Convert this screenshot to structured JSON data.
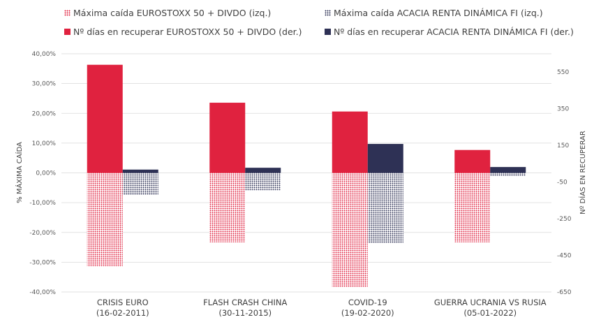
{
  "chart_data": {
    "type": "bar",
    "categories": [
      [
        "CRISIS EURO",
        "(16-02-2011)"
      ],
      [
        "FLASH CRASH CHINA",
        "(30-11-2015)"
      ],
      [
        "COVID-19",
        "(19-02-2020)"
      ],
      [
        "GUERRA UCRANIA VS RUSIA",
        "(05-01-2022)"
      ]
    ],
    "ylabel_left": "% MÁXIMA CAÍDA",
    "ylabel_right": "Nº DÍAS EN RECUPERAR",
    "ylim_left": [
      -40,
      40
    ],
    "ylim_right": [
      -650,
      650
    ],
    "yticks_left": [
      "40,00%",
      "30,00%",
      "20,00%",
      "10,00%",
      "0,00%",
      "-10,00%",
      "-20,00%",
      "-30,00%",
      "-40,00%"
    ],
    "yticks_left_values": [
      40,
      30,
      20,
      10,
      0,
      -10,
      -20,
      -30,
      -40
    ],
    "yticks_right": [
      "550",
      "350",
      "150",
      "-50",
      "-250",
      "-450",
      "-650"
    ],
    "yticks_right_values": [
      550,
      350,
      150,
      -50,
      -250,
      -450,
      -650
    ],
    "grid": true,
    "legend_position": "top",
    "series": [
      {
        "name": "Máxima caída EUROSTOXX 50 + DIVDO (izq.)",
        "axis": "left",
        "pattern": "dots",
        "color": "#E0223F",
        "values": [
          -31.5,
          -23.3,
          -38.3,
          -23.3
        ]
      },
      {
        "name": "Máxima caída ACACIA RENTA DINÁMICA FI (izq.)",
        "axis": "left",
        "pattern": "dots",
        "color": "#2E3155",
        "values": [
          -7.3,
          -5.8,
          -23.6,
          -1.1
        ]
      },
      {
        "name": "Nº días en recuperar EUROSTOXX 50 + DIVDO (der.)",
        "axis": "right",
        "pattern": "solid",
        "color": "#E0223F",
        "values": [
          590,
          383,
          335,
          125
        ]
      },
      {
        "name": "Nº días en recuperar ACACIA RENTA DINÁMICA FI (der.)",
        "axis": "right",
        "pattern": "solid",
        "color": "#2E3155",
        "values": [
          18,
          28,
          158,
          32
        ]
      }
    ]
  },
  "legend": [
    {
      "label": "Máxima caída EUROSTOXX 50 + DIVDO (izq.)",
      "color": "#E0223F",
      "pattern": "dots"
    },
    {
      "label": "Máxima caída ACACIA RENTA DINÁMICA FI (izq.)",
      "color": "#2E3155",
      "pattern": "dots"
    },
    {
      "label": "Nº días en recuperar EUROSTOXX 50 + DIVDO (der.)",
      "color": "#E0223F",
      "pattern": "solid"
    },
    {
      "label": "Nº días en recuperar ACACIA RENTA DINÁMICA FI (der.)",
      "color": "#2E3155",
      "pattern": "solid"
    }
  ]
}
